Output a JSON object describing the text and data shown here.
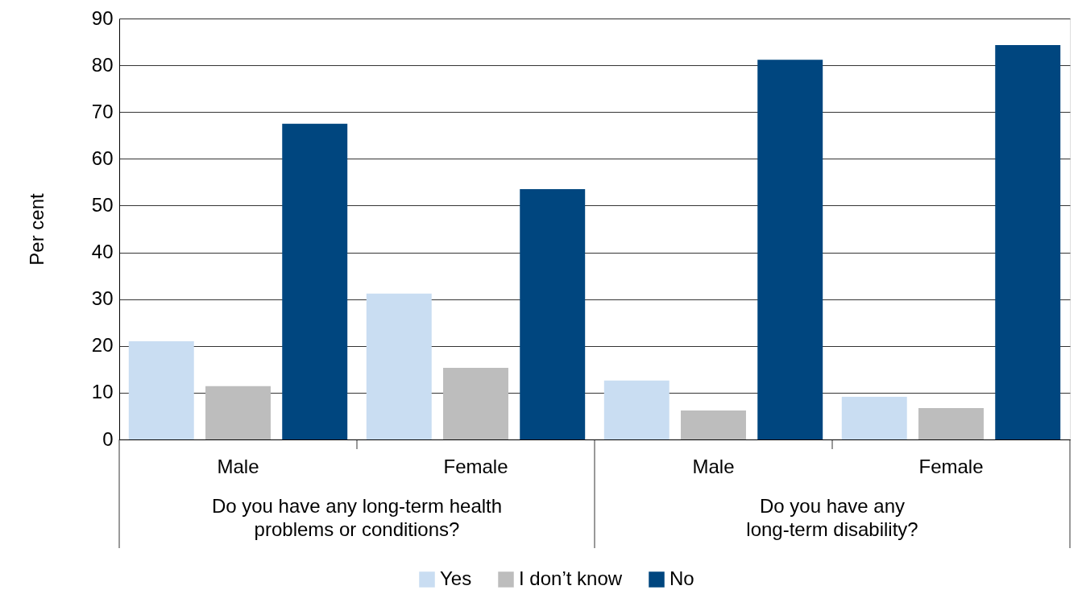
{
  "chart_data": {
    "type": "bar",
    "ylabel": "Per cent",
    "categories": [
      "Male",
      "Female",
      "Male",
      "Female"
    ],
    "annotations": [
      "Do you have any long-term health\nproblems or conditions?",
      "Do you have any\nlong-term disability?"
    ],
    "series": [
      {
        "name": "Yes",
        "color": "#c9ddf2",
        "values": [
          21.0,
          31.2,
          12.6,
          9.1
        ]
      },
      {
        "name": "I don’t know",
        "color": "#bdbdbd",
        "values": [
          11.4,
          15.3,
          6.2,
          6.7
        ]
      },
      {
        "name": "No",
        "color": "#00467f",
        "values": [
          67.5,
          53.5,
          81.2,
          84.3
        ]
      }
    ],
    "ylim": [
      0,
      90
    ],
    "yticks": [
      0,
      10,
      20,
      30,
      40,
      50,
      60,
      70,
      80,
      90
    ],
    "grid": "y",
    "legend": "bottom"
  }
}
